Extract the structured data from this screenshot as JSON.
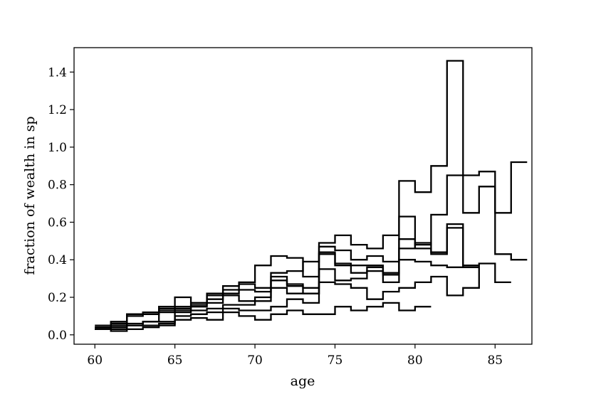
{
  "chart_data": {
    "type": "line",
    "step": true,
    "title": "",
    "xlabel": "age",
    "ylabel": "fraction of wealth in sp",
    "xlim": [
      58.7,
      87.3
    ],
    "ylim": [
      -0.05,
      1.53
    ],
    "xticks": [
      60,
      65,
      70,
      75,
      80,
      85
    ],
    "xtick_labels": [
      "60",
      "65",
      "70",
      "75",
      "80",
      "85"
    ],
    "yticks": [
      0.0,
      0.2,
      0.4,
      0.6,
      0.8,
      1.0,
      1.2,
      1.4
    ],
    "ytick_labels": [
      "0.0",
      "0.2",
      "0.4",
      "0.6",
      "0.8",
      "1.0",
      "1.2",
      "1.4"
    ],
    "grid": false,
    "legend": false,
    "line_color": "#000000",
    "x_edges": [
      60,
      61,
      62,
      63,
      64,
      65,
      66,
      67,
      68,
      69,
      70,
      71,
      72,
      73,
      74,
      75,
      76,
      77,
      78,
      79,
      80,
      81,
      82,
      83,
      84,
      85,
      86,
      87
    ],
    "series": [
      {
        "values": [
          0.05,
          0.06,
          0.11,
          0.12,
          0.15,
          0.2,
          0.17,
          0.22,
          0.26,
          0.28,
          0.37,
          0.42,
          0.41,
          0.31,
          0.49,
          0.53,
          0.48,
          0.46,
          0.53,
          0.82,
          0.76,
          0.9,
          1.46,
          0.85,
          0.87,
          0.43,
          0.4
        ]
      },
      {
        "values": [
          0.04,
          0.07,
          0.1,
          0.11,
          0.13,
          0.15,
          0.17,
          0.21,
          0.24,
          0.27,
          0.25,
          0.33,
          0.34,
          0.39,
          0.47,
          0.45,
          0.4,
          0.42,
          0.39,
          0.63,
          0.48,
          0.64,
          0.85,
          0.65,
          0.79,
          0.65,
          0.92
        ]
      },
      {
        "values": [
          0.04,
          0.06,
          0.11,
          0.11,
          0.14,
          0.14,
          0.15,
          0.19,
          0.22,
          0.24,
          0.23,
          0.31,
          0.27,
          0.25,
          0.44,
          0.38,
          0.33,
          0.36,
          0.33,
          0.51,
          0.46,
          0.44,
          0.59,
          0.37
        ]
      },
      {
        "values": [
          0.03,
          0.05,
          0.06,
          0.07,
          0.12,
          0.13,
          0.16,
          0.17,
          0.21,
          0.18,
          0.2,
          0.29,
          0.26,
          0.22,
          0.43,
          0.37,
          0.37,
          0.37,
          0.32,
          0.46,
          0.49,
          0.43,
          0.57,
          0.36
        ]
      },
      {
        "values": [
          0.03,
          0.04,
          0.05,
          0.07,
          0.07,
          0.12,
          0.13,
          0.14,
          0.16,
          0.16,
          0.18,
          0.25,
          0.22,
          0.22,
          0.35,
          0.29,
          0.3,
          0.34,
          0.28,
          0.4,
          0.39,
          0.37,
          0.36
        ]
      },
      {
        "values": [
          0.03,
          0.03,
          0.05,
          0.05,
          0.06,
          0.1,
          0.11,
          0.12,
          0.14,
          0.13,
          0.13,
          0.15,
          0.19,
          0.17,
          0.28,
          0.27,
          0.25,
          0.19,
          0.23,
          0.25,
          0.28,
          0.31,
          0.21,
          0.25,
          0.38,
          0.28
        ]
      },
      {
        "values": [
          0.03,
          0.02,
          0.03,
          0.04,
          0.05,
          0.08,
          0.09,
          0.08,
          0.12,
          0.1,
          0.08,
          0.11,
          0.13,
          0.11,
          0.11,
          0.15,
          0.13,
          0.15,
          0.17,
          0.13,
          0.15
        ]
      }
    ]
  }
}
